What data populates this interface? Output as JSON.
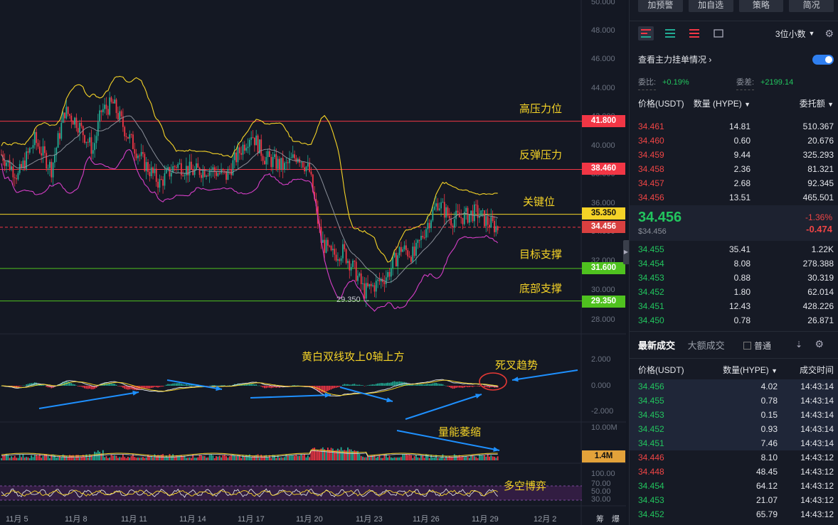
{
  "chart": {
    "price_axis": [
      "50.000",
      "48.000",
      "46.000",
      "44.000",
      "42.000",
      "40.000",
      "38.000",
      "36.000",
      "34.000",
      "32.000",
      "30.000",
      "28.000"
    ],
    "macd_axis": [
      "2.000",
      "0.000",
      "-2.000"
    ],
    "volume_axis": [
      "10.00M"
    ],
    "rsi_axis": [
      "100.00",
      "70.00",
      "50.00",
      "30.00"
    ],
    "x_axis": [
      "11月 5",
      "11月 8",
      "11月 11",
      "11月 14",
      "11月 17",
      "11月 20",
      "11月 23",
      "11月 26",
      "11月 29",
      "12月 2"
    ],
    "bottom_corner": [
      "筹",
      "爆"
    ],
    "price_tags": {
      "high_pressure": "41.800",
      "rebound_pressure": "38.460",
      "key_level": "35.350",
      "last_price": "34.456",
      "target_support": "31.600",
      "bottom_support": "29.350",
      "volume_now": "1.4M"
    },
    "low_marker": "29.350",
    "annotations": {
      "high_pressure": "高压力位",
      "rebound_pressure": "反弹压力",
      "key_level": "关键位",
      "target_support": "目标支撑",
      "bottom_support": "底部支撑",
      "macd_note": "黄白双线攻上0轴上方",
      "death_cross": "死叉趋势",
      "volume_shrink": "量能萎缩",
      "bull_bear": "多空博弈"
    },
    "colors": {
      "up": "#22ab94",
      "down": "#f23645",
      "yellow": "#f5d327",
      "pink": "#d63ec7",
      "grey": "#8a8f99"
    }
  },
  "panel": {
    "top_buttons": [
      "加预警",
      "加自选",
      "策略",
      "简况"
    ],
    "decimals": "3位小数",
    "depth_link": "查看主力挂单情况",
    "weibi_label": "委比:",
    "weibi_value": "+0.19%",
    "weicha_label": "委差:",
    "weicha_value": "+2199.14",
    "headers": {
      "price": "价格(USDT)",
      "qty": "数量 (HYPE)",
      "amount": "委托额"
    },
    "asks": [
      {
        "p": "34.461",
        "q": "14.81",
        "a": "510.367"
      },
      {
        "p": "34.460",
        "q": "0.60",
        "a": "20.676"
      },
      {
        "p": "34.459",
        "q": "9.44",
        "a": "325.293"
      },
      {
        "p": "34.458",
        "q": "2.36",
        "a": "81.321"
      },
      {
        "p": "34.457",
        "q": "2.68",
        "a": "92.345"
      },
      {
        "p": "34.456",
        "q": "13.51",
        "a": "465.501"
      }
    ],
    "last": {
      "price": "34.456",
      "usd": "$34.456",
      "pct": "-1.36%",
      "chg": "-0.474"
    },
    "bids": [
      {
        "p": "34.455",
        "q": "35.41",
        "a": "1.22K"
      },
      {
        "p": "34.454",
        "q": "8.08",
        "a": "278.388"
      },
      {
        "p": "34.453",
        "q": "0.88",
        "a": "30.319"
      },
      {
        "p": "34.452",
        "q": "1.80",
        "a": "62.014"
      },
      {
        "p": "34.451",
        "q": "12.43",
        "a": "428.226"
      },
      {
        "p": "34.450",
        "q": "0.78",
        "a": "26.871"
      }
    ],
    "trade_tabs": [
      "最新成交",
      "大额成交"
    ],
    "normal_label": "普通",
    "trade_headers": {
      "price": "价格(USDT)",
      "qty": "数量(HYPE)",
      "time": "成交时间"
    },
    "trades": [
      {
        "p": "34.456",
        "q": "4.02",
        "t": "14:43:14",
        "side": "bid"
      },
      {
        "p": "34.455",
        "q": "0.78",
        "t": "14:43:14",
        "side": "bid"
      },
      {
        "p": "34.453",
        "q": "0.15",
        "t": "14:43:14",
        "side": "bid"
      },
      {
        "p": "34.452",
        "q": "0.93",
        "t": "14:43:14",
        "side": "bid"
      },
      {
        "p": "34.451",
        "q": "7.46",
        "t": "14:43:14",
        "side": "bid"
      },
      {
        "p": "34.446",
        "q": "8.10",
        "t": "14:43:12",
        "side": "ask"
      },
      {
        "p": "34.448",
        "q": "48.45",
        "t": "14:43:12",
        "side": "ask"
      },
      {
        "p": "34.454",
        "q": "64.12",
        "t": "14:43:12",
        "side": "bid"
      },
      {
        "p": "34.453",
        "q": "21.07",
        "t": "14:43:12",
        "side": "bid"
      },
      {
        "p": "34.452",
        "q": "65.79",
        "t": "14:43:12",
        "side": "bid"
      }
    ]
  }
}
